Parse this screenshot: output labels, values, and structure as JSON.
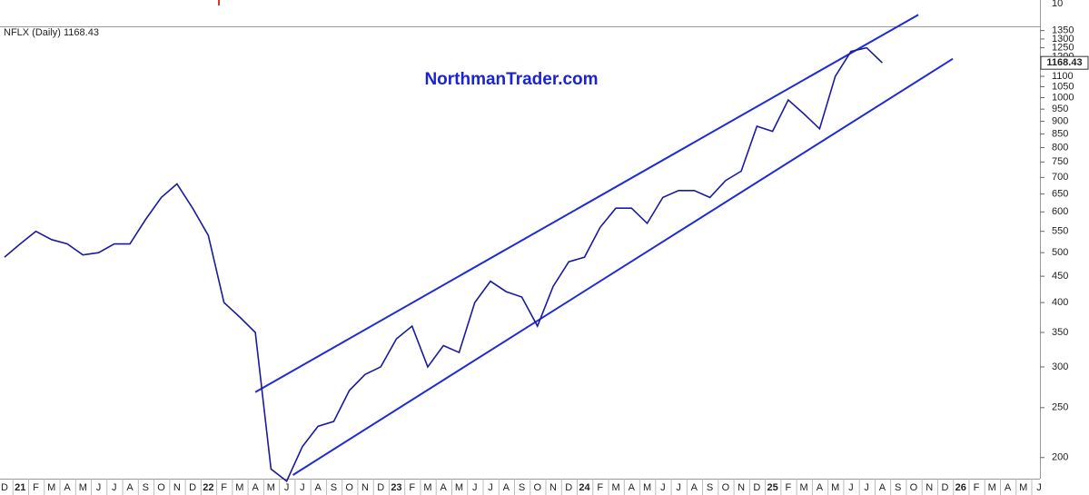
{
  "chart_data": {
    "type": "line",
    "title": "NFLX (Daily) 1168.43",
    "watermark": "NorthmanTrader.com",
    "upper_pane_label": "10",
    "last_price": 1168.43,
    "log_scale": true,
    "grid": false,
    "categories": [
      "D",
      "21",
      "F",
      "M",
      "A",
      "M",
      "J",
      "J",
      "A",
      "S",
      "O",
      "N",
      "D",
      "22",
      "F",
      "M",
      "A",
      "M",
      "J",
      "J",
      "A",
      "S",
      "O",
      "N",
      "D",
      "23",
      "F",
      "M",
      "A",
      "M",
      "J",
      "J",
      "A",
      "S",
      "O",
      "N",
      "D",
      "24",
      "F",
      "M",
      "A",
      "M",
      "J",
      "J",
      "A",
      "S",
      "O",
      "N",
      "D",
      "25",
      "F",
      "M",
      "A",
      "M",
      "J",
      "J",
      "A",
      "S",
      "O",
      "N",
      "D",
      "26",
      "F",
      "M",
      "A",
      "M",
      "J"
    ],
    "series": [
      {
        "name": "NFLX",
        "color": "#1a1aa0",
        "values": [
          490,
          520,
          550,
          530,
          520,
          495,
          500,
          520,
          520,
          580,
          640,
          680,
          610,
          540,
          400,
          375,
          350,
          190,
          180,
          210,
          230,
          235,
          270,
          290,
          300,
          340,
          360,
          300,
          330,
          320,
          400,
          440,
          420,
          410,
          360,
          430,
          480,
          490,
          560,
          610,
          610,
          570,
          640,
          660,
          660,
          640,
          690,
          720,
          880,
          860,
          990,
          930,
          870,
          1100,
          1230,
          1250,
          1168.43,
          null,
          null,
          null,
          null,
          null,
          null,
          null,
          null,
          null,
          null
        ]
      }
    ],
    "trendlines": [
      {
        "color": "#1f2bd6",
        "from": [
          16,
          268
        ],
        "to": [
          58.3,
          1449
        ]
      },
      {
        "color": "#1f2bd6",
        "from": [
          18.4,
          185
        ],
        "to": [
          60.5,
          1190
        ]
      }
    ],
    "ylim": [
      182,
      1370
    ],
    "yticks": [
      200,
      250,
      300,
      350,
      400,
      450,
      500,
      550,
      600,
      650,
      700,
      750,
      800,
      850,
      900,
      950,
      1000,
      1050,
      1100,
      1200,
      1250,
      1300,
      1350
    ]
  }
}
